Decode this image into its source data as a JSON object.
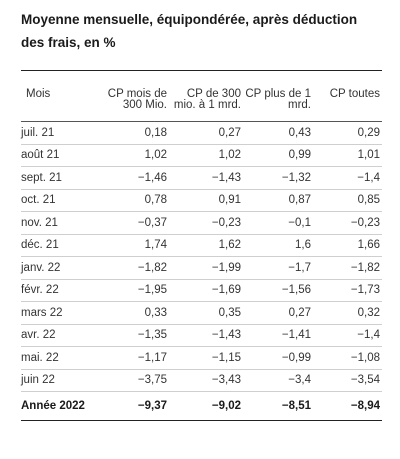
{
  "title": "Moyenne mensuelle, équipondérée, après déduction des frais, en %",
  "chart_data": {
    "type": "table",
    "title": "Moyenne mensuelle, équipondérée, après déduction des frais, en %",
    "columns": [
      "Mois",
      "CP mois de 300 Mio.",
      "CP de 300 mio. à 1 mrd.",
      "CP plus de 1 mrd.",
      "CP toutes"
    ],
    "rows": [
      {
        "mois": "juil. 21",
        "values": [
          "0,18",
          "0,27",
          "0,43",
          "0,29"
        ]
      },
      {
        "mois": "août 21",
        "values": [
          "1,02",
          "1,02",
          "0,99",
          "1,01"
        ]
      },
      {
        "mois": "sept. 21",
        "values": [
          "−1,46",
          "−1,43",
          "−1,32",
          "−1,4"
        ]
      },
      {
        "mois": "oct. 21",
        "values": [
          "0,78",
          "0,91",
          "0,87",
          "0,85"
        ]
      },
      {
        "mois": "nov. 21",
        "values": [
          "−0,37",
          "−0,23",
          "−0,1",
          "−0,23"
        ]
      },
      {
        "mois": "déc. 21",
        "values": [
          "1,74",
          "1,62",
          "1,6",
          "1,66"
        ]
      },
      {
        "mois": "janv. 22",
        "values": [
          "−1,82",
          "−1,99",
          "−1,7",
          "−1,82"
        ]
      },
      {
        "mois": "févr. 22",
        "values": [
          "−1,95",
          "−1,69",
          "−1,56",
          "−1,73"
        ]
      },
      {
        "mois": "mars 22",
        "values": [
          "0,33",
          "0,35",
          "0,27",
          "0,32"
        ]
      },
      {
        "mois": "avr. 22",
        "values": [
          "−1,35",
          "−1,43",
          "−1,41",
          "−1,4"
        ]
      },
      {
        "mois": "mai. 22",
        "values": [
          "−1,17",
          "−1,15",
          "−0,99",
          "−1,08"
        ]
      },
      {
        "mois": "juin 22",
        "values": [
          "−3,75",
          "−3,43",
          "−3,4",
          "−3,54"
        ]
      }
    ],
    "total": {
      "mois": "Année 2022",
      "values": [
        "−9,37",
        "−9,02",
        "−8,51",
        "−8,94"
      ]
    }
  }
}
